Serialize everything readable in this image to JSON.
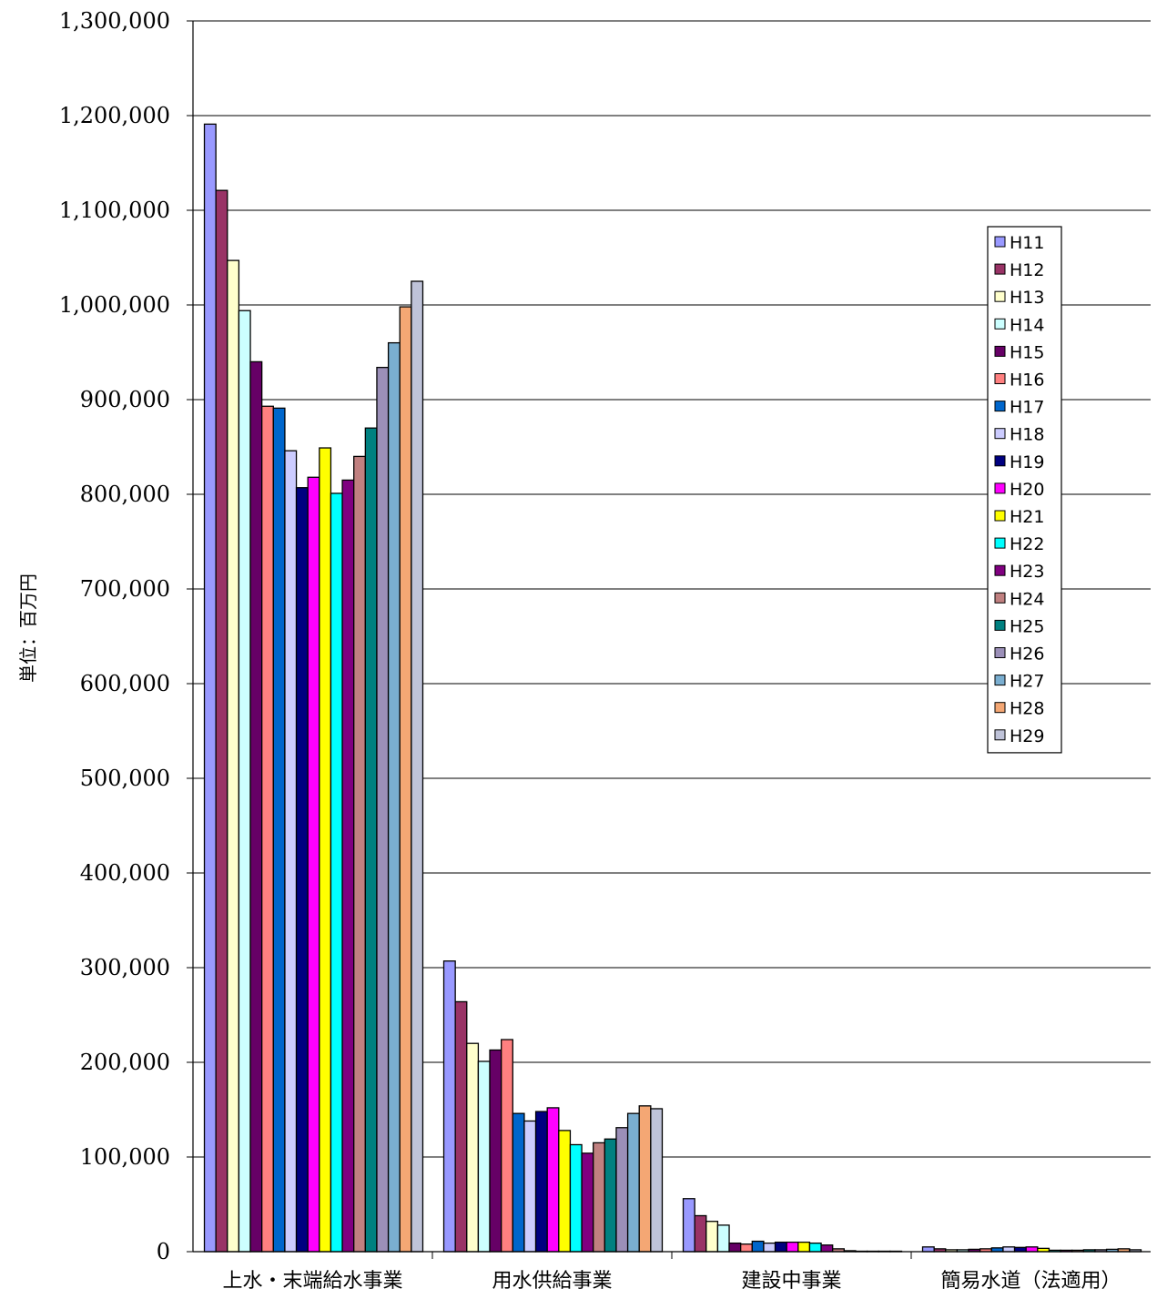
{
  "chart_data": {
    "type": "bar",
    "ylabel": "単位：百万円",
    "xlabel": "",
    "title": "",
    "ylim": [
      0,
      1300000
    ],
    "yticks": [
      0,
      100000,
      200000,
      300000,
      400000,
      500000,
      600000,
      700000,
      800000,
      900000,
      1000000,
      1100000,
      1200000,
      1300000
    ],
    "ytick_labels": [
      "0",
      "100,000",
      "200,000",
      "300,000",
      "400,000",
      "500,000",
      "600,000",
      "700,000",
      "800,000",
      "900,000",
      "1,000,000",
      "1,100,000",
      "1,200,000",
      "1,300,000"
    ],
    "grid": true,
    "legend_position": "right",
    "categories": [
      "上水・末端給水事業",
      "用水供給事業",
      "建設中事業",
      "簡易水道（法適用）"
    ],
    "series": [
      {
        "name": "H11",
        "color": "#9999ff",
        "values": [
          1191000,
          307000,
          56000,
          5000
        ]
      },
      {
        "name": "H12",
        "color": "#993366",
        "values": [
          1121000,
          264000,
          38000,
          3000
        ]
      },
      {
        "name": "H13",
        "color": "#ffffcc",
        "values": [
          1047000,
          220000,
          32000,
          2000
        ]
      },
      {
        "name": "H14",
        "color": "#ccffff",
        "values": [
          994000,
          201000,
          28000,
          2000
        ]
      },
      {
        "name": "H15",
        "color": "#660066",
        "values": [
          940000,
          213000,
          9000,
          2500
        ]
      },
      {
        "name": "H16",
        "color": "#ff8080",
        "values": [
          893000,
          224000,
          8000,
          3000
        ]
      },
      {
        "name": "H17",
        "color": "#0066cc",
        "values": [
          891000,
          146000,
          11000,
          4000
        ]
      },
      {
        "name": "H18",
        "color": "#ccccff",
        "values": [
          846000,
          138000,
          9000,
          5000
        ]
      },
      {
        "name": "H19",
        "color": "#000080",
        "values": [
          807000,
          148000,
          10000,
          4500
        ]
      },
      {
        "name": "H20",
        "color": "#ff00ff",
        "values": [
          818000,
          152000,
          10000,
          5000
        ]
      },
      {
        "name": "H21",
        "color": "#ffff00",
        "values": [
          849000,
          128000,
          10000,
          3500
        ]
      },
      {
        "name": "H22",
        "color": "#00ffff",
        "values": [
          801000,
          113000,
          9000,
          1500
        ]
      },
      {
        "name": "H23",
        "color": "#800080",
        "values": [
          815000,
          104000,
          7000,
          1500
        ]
      },
      {
        "name": "H24",
        "color": "#c08080",
        "values": [
          840000,
          115000,
          3000,
          1500
        ]
      },
      {
        "name": "H25",
        "color": "#008080",
        "values": [
          870000,
          119000,
          1000,
          2000
        ]
      },
      {
        "name": "H26",
        "color": "#9b8fb8",
        "values": [
          934000,
          131000,
          500,
          2000
        ]
      },
      {
        "name": "H27",
        "color": "#7aaed0",
        "values": [
          960000,
          146000,
          500,
          2500
        ]
      },
      {
        "name": "H28",
        "color": "#f4a774",
        "values": [
          998000,
          154000,
          500,
          3000
        ]
      },
      {
        "name": "H29",
        "color": "#bfc3d9",
        "values": [
          1025000,
          151000,
          500,
          2000
        ]
      }
    ]
  }
}
